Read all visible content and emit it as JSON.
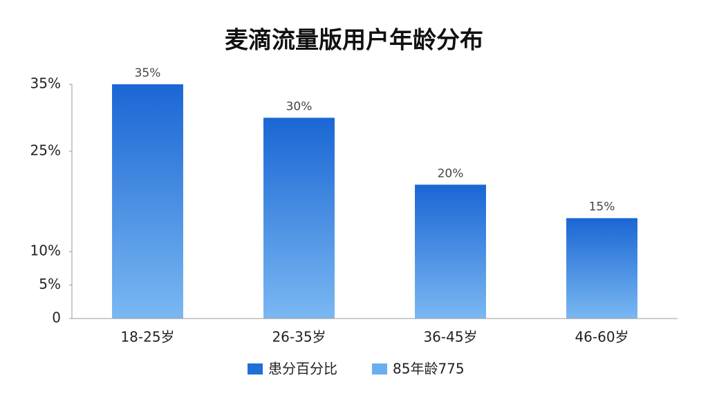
{
  "chart_data": {
    "type": "bar",
    "title": "麦滴流量版用户年龄分布",
    "categories": [
      "18-25岁",
      "26-35岁",
      "36-45岁",
      "46-60岁"
    ],
    "values": [
      35,
      30,
      20,
      15
    ],
    "value_labels": [
      "35%",
      "30%",
      "20%",
      "15%"
    ],
    "color": "#1a66d4",
    "ylim": [
      0,
      35
    ],
    "yticks": [
      0,
      {
        "value": 5,
        "label": "5%"
      },
      {
        "value": 10,
        "label": "10%"
      },
      {
        "value": 25,
        "label": "25%"
      },
      {
        "value": 35,
        "label": "35%"
      }
    ],
    "grid": false,
    "legend": [
      {
        "name": "患分百分比",
        "color": "#1f6fd6"
      },
      {
        "name": "85年龄775",
        "color": "#6aaef0"
      }
    ],
    "legend_position": "bottom"
  }
}
